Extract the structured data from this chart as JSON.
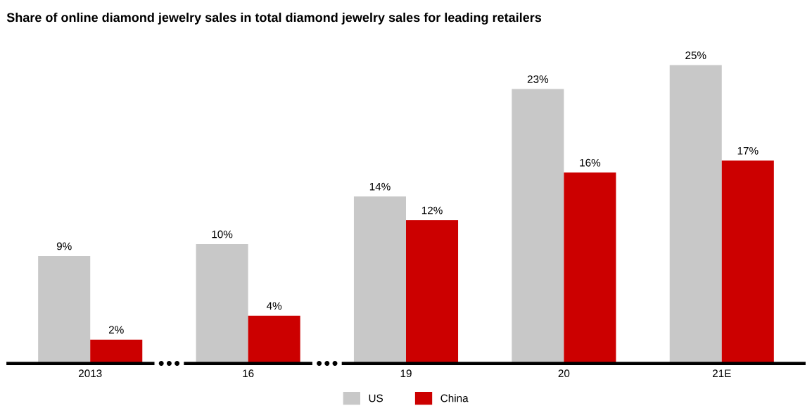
{
  "chart_data": {
    "type": "bar",
    "title": "Share of online diamond jewelry sales in total diamond jewelry sales for leading retailers",
    "categories": [
      "2013",
      "16",
      "19",
      "20",
      "21E"
    ],
    "series": [
      {
        "name": "US",
        "color": "#c8c8c8",
        "values": [
          9,
          10,
          14,
          23,
          25
        ],
        "value_labels": [
          "9%",
          "10%",
          "14%",
          "23%",
          "25%"
        ]
      },
      {
        "name": "China",
        "color": "#cc0000",
        "values": [
          2,
          4,
          12,
          16,
          17
        ],
        "value_labels": [
          "2%",
          "4%",
          "12%",
          "16%",
          "17%"
        ]
      }
    ],
    "grid": false,
    "legend": "bottom"
  }
}
